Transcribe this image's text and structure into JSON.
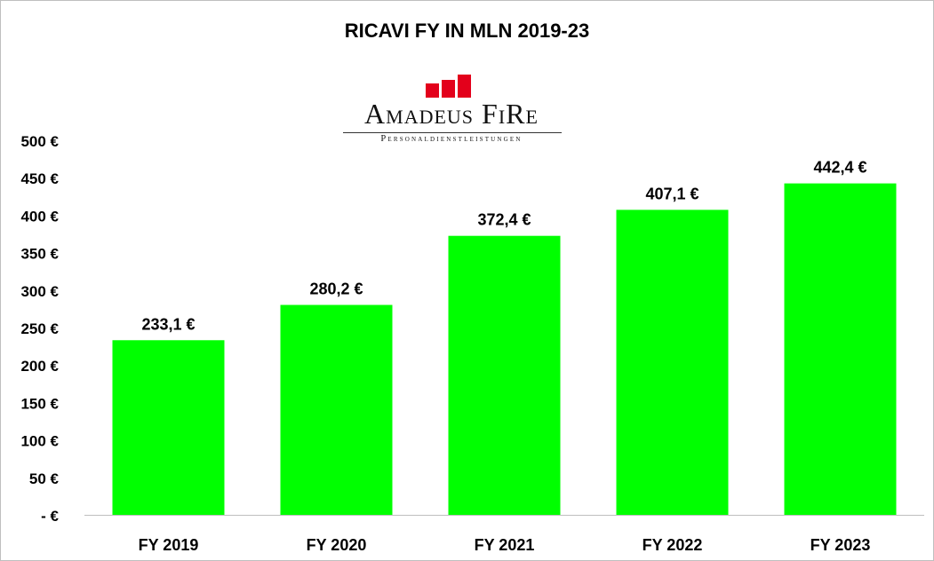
{
  "chart_data": {
    "type": "bar",
    "title": "RICAVI FY IN MLN 2019-23",
    "categories": [
      "FY 2019",
      "FY 2020",
      "FY 2021",
      "FY 2022",
      "FY 2023"
    ],
    "values": [
      233.1,
      280.2,
      372.4,
      407.1,
      442.4
    ],
    "data_labels": [
      "233,1 €",
      "280,2 €",
      "372,4 €",
      "407,1 €",
      "442,4 €"
    ],
    "ylim": [
      0,
      500
    ],
    "yticks": [
      0,
      50,
      100,
      150,
      200,
      250,
      300,
      350,
      400,
      450,
      500
    ],
    "ytick_labels": [
      "- €",
      "50 €",
      "100 €",
      "150 €",
      "200 €",
      "250 €",
      "300 €",
      "350 €",
      "400 €",
      "450 €",
      "500 €"
    ],
    "xlabel": "",
    "ylabel": "",
    "grid": false,
    "bar_color": "#00ff00"
  },
  "logo": {
    "name": "Amadeus FiRe",
    "tagline": "Personaldienstleistungen",
    "accent_color": "#e3001b"
  }
}
